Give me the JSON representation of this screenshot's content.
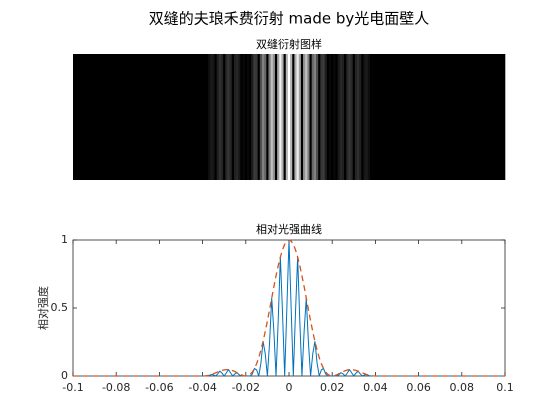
{
  "title": "双缝的夫琅禾费衍射 made by光电面壁人",
  "chart_data": [
    {
      "type": "image",
      "title": "双缝衍射图样",
      "colormap": "gray"
    },
    {
      "type": "line",
      "title": "相对光强曲线",
      "ylabel": "相对强度",
      "x": [
        -0.1,
        -0.06,
        -0.04,
        -0.039,
        -0.038,
        -0.037,
        -0.036,
        -0.035,
        -0.034,
        -0.033,
        -0.032,
        -0.031,
        -0.03,
        -0.029,
        -0.028,
        -0.027,
        -0.026,
        -0.025,
        -0.024,
        -0.023,
        -0.022,
        -0.021,
        -0.02,
        -0.019,
        -0.018,
        -0.017,
        -0.016,
        -0.015,
        -0.014,
        -0.013,
        -0.012,
        -0.011,
        -0.01,
        -0.009,
        -0.008,
        -0.007,
        -0.006,
        -0.005,
        -0.004,
        -0.003,
        -0.002,
        -0.001,
        0,
        0.001,
        0.002,
        0.003,
        0.004,
        0.005,
        0.006,
        0.007,
        0.008,
        0.009,
        0.01,
        0.011,
        0.012,
        0.013,
        0.014,
        0.015,
        0.016,
        0.017,
        0.018,
        0.019,
        0.02,
        0.021,
        0.022,
        0.023,
        0.024,
        0.025,
        0.026,
        0.027,
        0.028,
        0.029,
        0.03,
        0.031,
        0.032,
        0.033,
        0.034,
        0.035,
        0.036,
        0.037,
        0.038,
        0.039,
        0.04,
        0.06,
        0.1
      ],
      "series": [
        {
          "color": "#0072bd",
          "style": "solid",
          "values": [
            0,
            0,
            0,
            0,
            0,
            0.003,
            0.011,
            0.008,
            0,
            0.015,
            0.036,
            0.021,
            0,
            0.024,
            0.047,
            0.022,
            0,
            0.016,
            0.024,
            0.008,
            0,
            0.001,
            0,
            0.001,
            0,
            0.014,
            0.055,
            0.045,
            0,
            0.095,
            0.255,
            0.163,
            0,
            0.244,
            0.573,
            0.328,
            0,
            0.405,
            0.875,
            0.464,
            0,
            0.496,
            1,
            0.496,
            0,
            0.464,
            0.875,
            0.405,
            0,
            0.328,
            0.573,
            0.244,
            0,
            0.163,
            0.255,
            0.095,
            0,
            0.045,
            0.055,
            0.014,
            0,
            0.001,
            0,
            0.001,
            0,
            0.008,
            0.024,
            0.016,
            0,
            0.022,
            0.047,
            0.024,
            0,
            0.021,
            0.036,
            0.015,
            0,
            0.008,
            0.011,
            0.003,
            0,
            0,
            0,
            0,
            0
          ]
        },
        {
          "color": "#d95319",
          "style": "dashed",
          "values": [
            0,
            0,
            0,
            0.001,
            0.003,
            0.006,
            0.011,
            0.017,
            0.023,
            0.03,
            0.036,
            0.041,
            0.045,
            0.047,
            0.047,
            0.044,
            0.039,
            0.032,
            0.024,
            0.016,
            0.008,
            0.002,
            0,
            0.003,
            0.012,
            0.029,
            0.055,
            0.09,
            0.135,
            0.19,
            0.255,
            0.327,
            0.405,
            0.488,
            0.573,
            0.657,
            0.737,
            0.811,
            0.875,
            0.928,
            0.968,
            0.992,
            1,
            0.992,
            0.968,
            0.928,
            0.875,
            0.811,
            0.737,
            0.657,
            0.573,
            0.488,
            0.405,
            0.327,
            0.255,
            0.19,
            0.135,
            0.09,
            0.055,
            0.029,
            0.012,
            0.003,
            0,
            0.002,
            0.008,
            0.016,
            0.024,
            0.032,
            0.039,
            0.044,
            0.047,
            0.047,
            0.045,
            0.041,
            0.036,
            0.03,
            0.023,
            0.017,
            0.011,
            0.006,
            0.003,
            0.001,
            0,
            0,
            0
          ]
        }
      ],
      "xlim": [
        -0.1,
        0.1
      ],
      "xticks": [
        -0.1,
        -0.08,
        -0.06,
        -0.04,
        -0.02,
        0,
        0.02,
        0.04,
        0.06,
        0.08,
        0.1
      ],
      "ylim": [
        0,
        1
      ],
      "yticks": [
        0,
        0.5,
        1
      ]
    }
  ]
}
